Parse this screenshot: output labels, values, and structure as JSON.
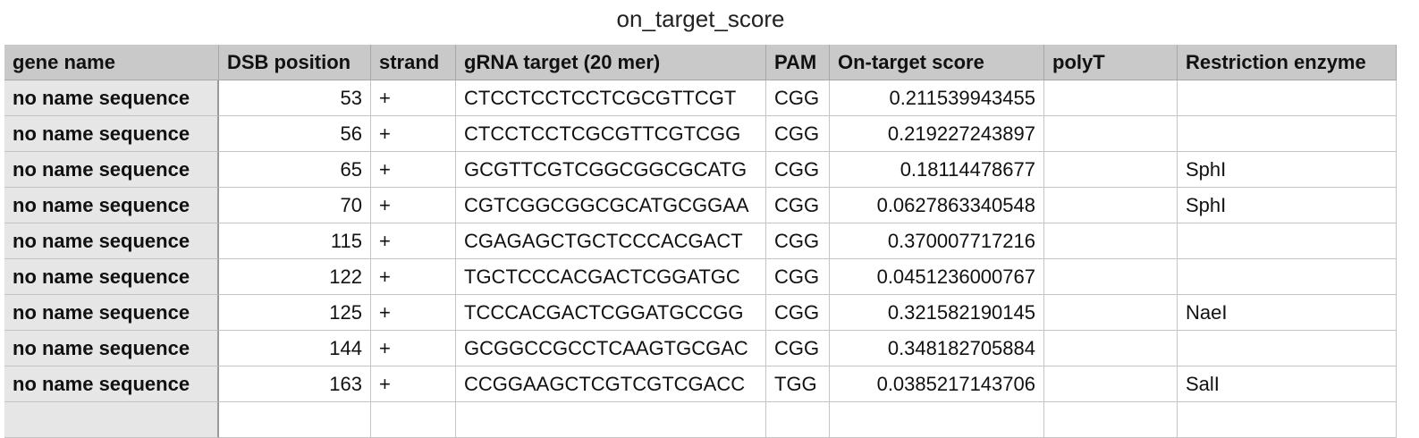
{
  "title": "on_target_score",
  "table": {
    "columns": [
      "gene name",
      "DSB position",
      "strand",
      "gRNA target (20 mer)",
      "PAM",
      "On-target score",
      "polyT",
      "Restriction enzyme"
    ],
    "rows": [
      [
        "no name sequence",
        53,
        "+",
        "CTCCTCCTCCTCGCGTTCGT",
        "CGG",
        0.211539943455,
        null,
        null
      ],
      [
        "no name sequence",
        56,
        "+",
        "CTCCTCCTCGCGTTCGTCGG",
        "CGG",
        0.219227243897,
        null,
        null
      ],
      [
        "no name sequence",
        65,
        "+",
        "GCGTTCGTCGGCGGCGCATG",
        "CGG",
        0.18114478677,
        null,
        "SphI"
      ],
      [
        "no name sequence",
        70,
        "+",
        "CGTCGGCGGCGCATGCGGAA",
        "CGG",
        0.0627863340548,
        null,
        "SphI"
      ],
      [
        "no name sequence",
        115,
        "+",
        "CGAGAGCTGCTCCCACGACT",
        "CGG",
        0.370007717216,
        null,
        null
      ],
      [
        "no name sequence",
        122,
        "+",
        "TGCTCCCACGACTCGGATGC",
        "CGG",
        0.0451236000767,
        null,
        null
      ],
      [
        "no name sequence",
        125,
        "+",
        "TCCCACGACTCGGATGCCGG",
        "CGG",
        0.321582190145,
        null,
        "NaeI"
      ],
      [
        "no name sequence",
        144,
        "+",
        "GCGGCCGCCTCAAGTGCGAC",
        "CGG",
        0.348182705884,
        null,
        null
      ],
      [
        "no name sequence",
        163,
        "+",
        "CCGGAAGCTCGTCGTCGACC",
        "TGG",
        0.0385217143706,
        null,
        "SalI"
      ]
    ]
  }
}
